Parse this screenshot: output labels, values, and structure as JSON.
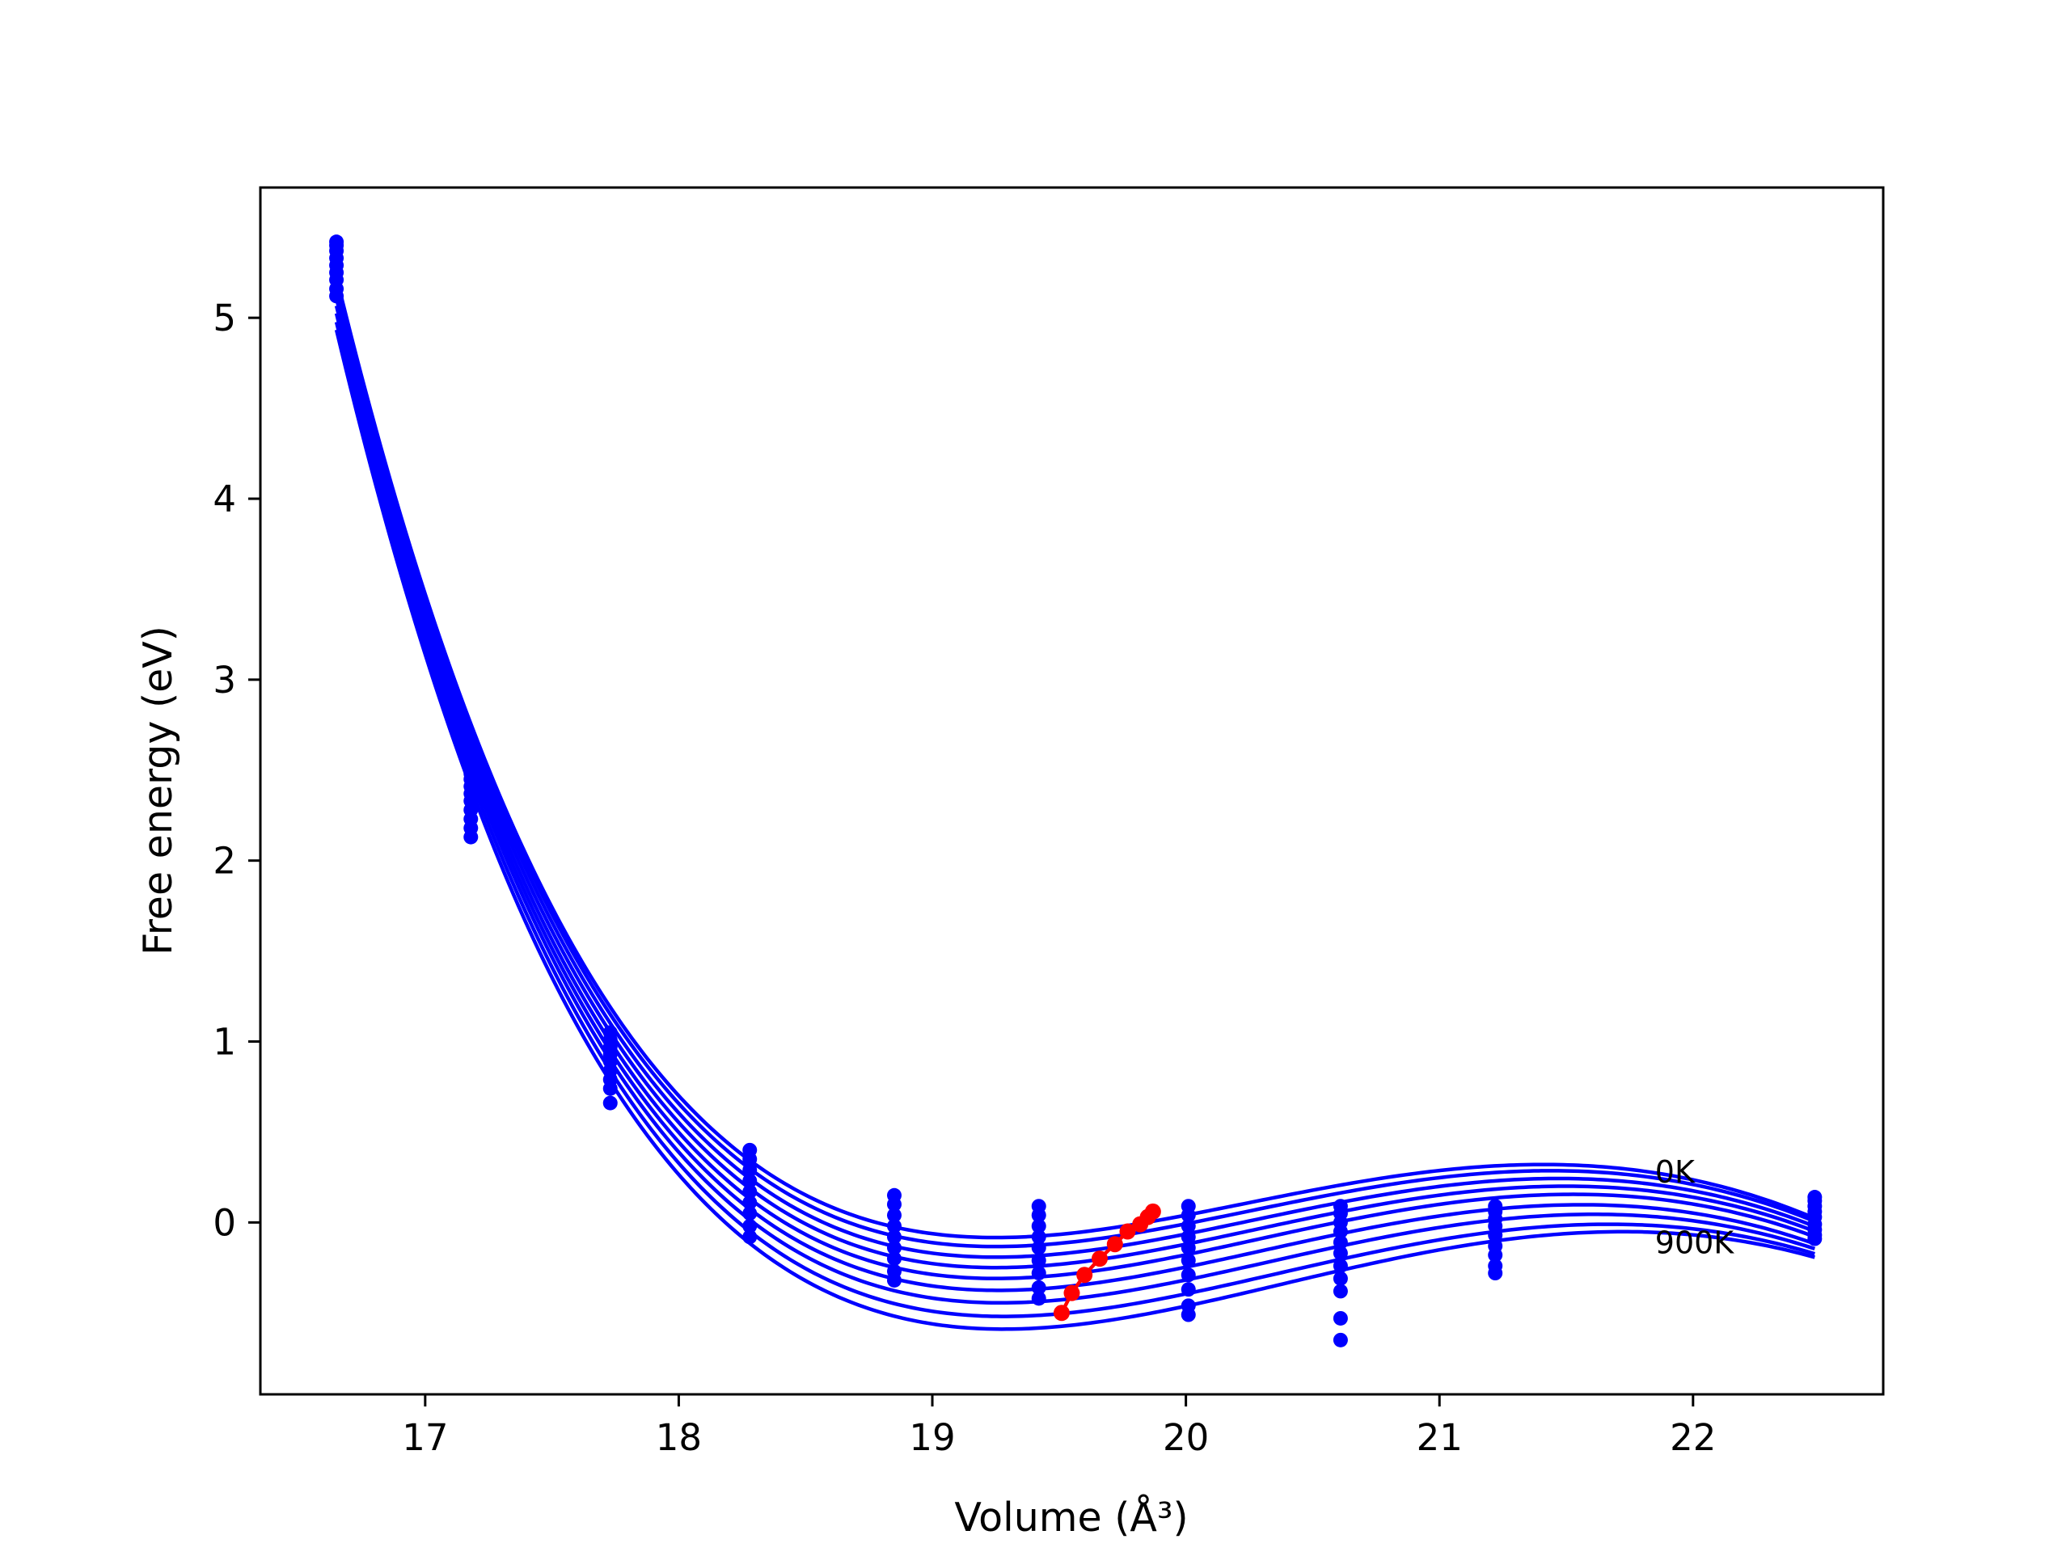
{
  "chart_data": {
    "type": "line",
    "xlabel": "Volume (Å³)",
    "ylabel": "Free energy (eV)",
    "xlim": [
      16.35,
      22.75
    ],
    "ylim": [
      -0.95,
      5.72
    ],
    "xticks": [
      17,
      18,
      19,
      20,
      21,
      22
    ],
    "yticks": [
      0,
      1,
      2,
      3,
      4,
      5
    ],
    "grid": false,
    "colors": {
      "curves": "#0000ff",
      "minima": "#ff0000"
    },
    "annotations": [
      {
        "text": "0K",
        "x": 21.85,
        "y": 0.22
      },
      {
        "text": "900K",
        "x": 21.85,
        "y": -0.17
      }
    ],
    "volumes": [
      16.65,
      17.18,
      17.73,
      18.28,
      18.85,
      19.42,
      20.01,
      20.61,
      21.22,
      22.48
    ],
    "series": [
      {
        "values": [
          5.42,
          2.48,
          1.05,
          0.4,
          0.15,
          0.09,
          0.09,
          0.09,
          0.09,
          0.14
        ]
      },
      {
        "values": [
          5.4,
          2.45,
          1.01,
          0.35,
          0.1,
          0.04,
          0.04,
          0.05,
          0.06,
          0.12
        ]
      },
      {
        "values": [
          5.37,
          2.41,
          0.97,
          0.29,
          0.04,
          -0.02,
          -0.02,
          0.0,
          0.02,
          0.09
        ]
      },
      {
        "values": [
          5.33,
          2.37,
          0.93,
          0.23,
          -0.02,
          -0.08,
          -0.08,
          -0.05,
          -0.02,
          0.06
        ]
      },
      {
        "values": [
          5.29,
          2.33,
          0.89,
          0.17,
          -0.08,
          -0.14,
          -0.14,
          -0.11,
          -0.07,
          0.03
        ]
      },
      {
        "values": [
          5.25,
          2.28,
          0.84,
          0.11,
          -0.14,
          -0.21,
          -0.21,
          -0.17,
          -0.13,
          -0.01
        ]
      },
      {
        "values": [
          5.21,
          2.23,
          0.79,
          0.05,
          -0.2,
          -0.28,
          -0.29,
          -0.24,
          -0.18,
          -0.04
        ]
      },
      {
        "values": [
          5.16,
          2.18,
          0.74,
          -0.02,
          -0.27,
          -0.36,
          -0.37,
          -0.31,
          -0.24,
          -0.07
        ]
      },
      {
        "values": [
          5.12,
          2.13,
          0.66,
          -0.08,
          -0.32,
          -0.42,
          -0.46,
          -0.38,
          -0.28,
          -0.09
        ]
      }
    ],
    "extra_points": [
      {
        "x": 20.01,
        "y": -0.51
      },
      {
        "x": 20.61,
        "y": -0.53
      },
      {
        "x": 20.61,
        "y": -0.65
      }
    ],
    "minima": {
      "x": [
        19.87,
        19.85,
        19.82,
        19.77,
        19.72,
        19.66,
        19.6,
        19.55,
        19.51
      ],
      "y": [
        0.06,
        0.03,
        -0.01,
        -0.05,
        -0.12,
        -0.2,
        -0.29,
        -0.39,
        -0.5
      ]
    }
  }
}
